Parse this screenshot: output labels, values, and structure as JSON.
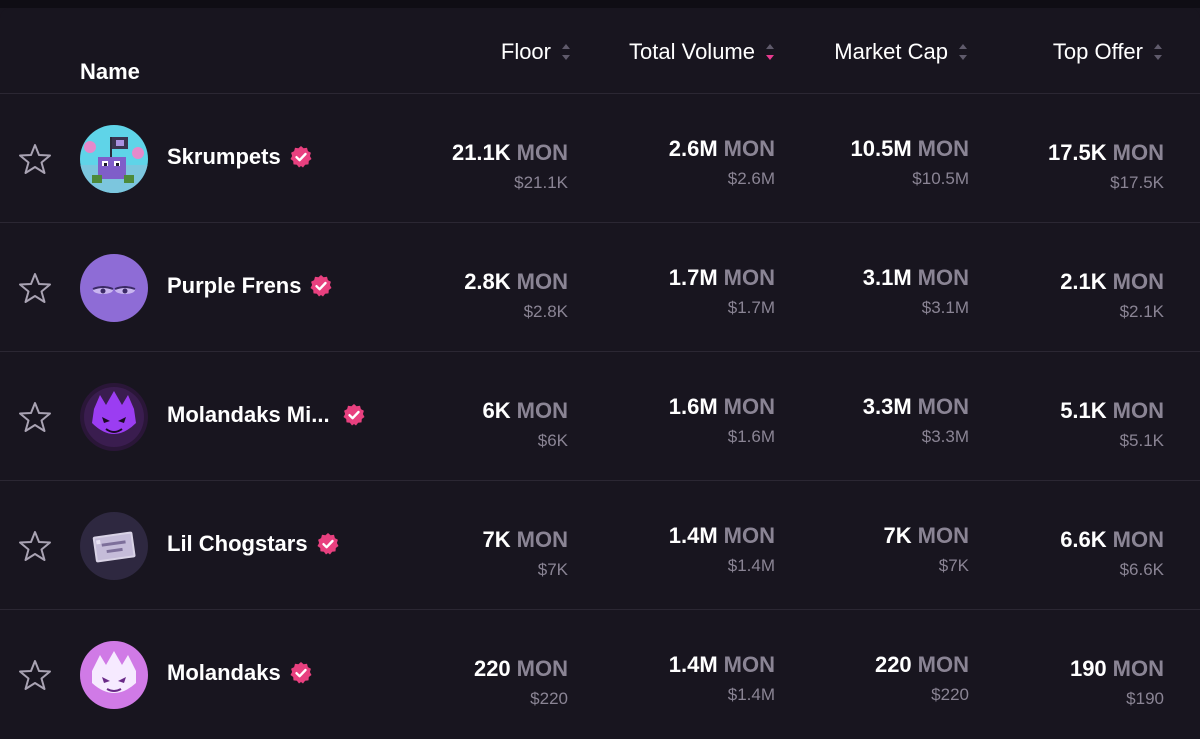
{
  "colors": {
    "background": "#18151f",
    "muted": "#8a8494",
    "accent": "#e83a8f",
    "verified": "#e8407f"
  },
  "header": {
    "name_label": "Name",
    "floor_label": "Floor",
    "volume_label": "Total Volume",
    "market_cap_label": "Market Cap",
    "top_offer_label": "Top Offer",
    "active_sort": "Total Volume",
    "active_sort_direction": "descending"
  },
  "currency_unit": "MON",
  "rows": [
    {
      "name": "Skrumpets",
      "avatar": "skrumpets-avatar",
      "verified": true,
      "floor": "21.1K",
      "floor_unit": "MON",
      "floor_usd": "$21.1K",
      "volume": "2.6M",
      "volume_unit": "MON",
      "volume_usd": "$2.6M",
      "market_cap": "10.5M",
      "market_cap_unit": "MON",
      "market_cap_usd": "$10.5M",
      "top_offer": "17.5K",
      "top_offer_unit": "MON",
      "top_offer_usd": "$17.5K"
    },
    {
      "name": "Purple Frens",
      "avatar": "purple-frens-avatar",
      "verified": true,
      "floor": "2.8K",
      "floor_unit": "MON",
      "floor_usd": "$2.8K",
      "volume": "1.7M",
      "volume_unit": "MON",
      "volume_usd": "$1.7M",
      "market_cap": "3.1M",
      "market_cap_unit": "MON",
      "market_cap_usd": "$3.1M",
      "top_offer": "2.1K",
      "top_offer_unit": "MON",
      "top_offer_usd": "$2.1K"
    },
    {
      "name": "Molandaks Mi...",
      "avatar": "molandaks-mini-avatar",
      "verified": true,
      "floor": "6K",
      "floor_unit": "MON",
      "floor_usd": "$6K",
      "volume": "1.6M",
      "volume_unit": "MON",
      "volume_usd": "$1.6M",
      "market_cap": "3.3M",
      "market_cap_unit": "MON",
      "market_cap_usd": "$3.3M",
      "top_offer": "5.1K",
      "top_offer_unit": "MON",
      "top_offer_usd": "$5.1K"
    },
    {
      "name": "Lil Chogstars",
      "avatar": "lil-chogstars-avatar",
      "verified": true,
      "floor": "7K",
      "floor_unit": "MON",
      "floor_usd": "$7K",
      "volume": "1.4M",
      "volume_unit": "MON",
      "volume_usd": "$1.4M",
      "market_cap": "7K",
      "market_cap_unit": "MON",
      "market_cap_usd": "$7K",
      "top_offer": "6.6K",
      "top_offer_unit": "MON",
      "top_offer_usd": "$6.6K"
    },
    {
      "name": "Molandaks",
      "avatar": "molandaks-avatar",
      "verified": true,
      "floor": "220",
      "floor_unit": "MON",
      "floor_usd": "$220",
      "volume": "1.4M",
      "volume_unit": "MON",
      "volume_usd": "$1.4M",
      "market_cap": "220",
      "market_cap_unit": "MON",
      "market_cap_usd": "$220",
      "top_offer": "190",
      "top_offer_unit": "MON",
      "top_offer_usd": "$190"
    }
  ]
}
